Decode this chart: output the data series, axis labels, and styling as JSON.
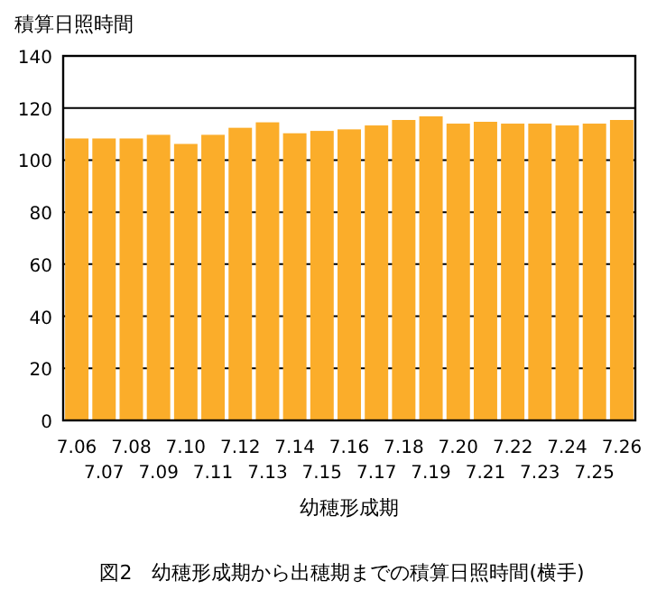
{
  "chart_data": {
    "type": "bar",
    "ylabel": "積算日照時間",
    "xlabel": "幼穂形成期",
    "annotations": [
      "図2　幼穂形成期から出穂期までの積算日照時間(横手)"
    ],
    "categories": [
      "7.06",
      "7.07",
      "7.08",
      "7.09",
      "7.10",
      "7.11",
      "7.12",
      "7.13",
      "7.14",
      "7.15",
      "7.16",
      "7.17",
      "7.18",
      "7.19",
      "7.20",
      "7.21",
      "7.22",
      "7.23",
      "7.24",
      "7.25",
      "7.26"
    ],
    "values": [
      108.3,
      108.3,
      108.3,
      109.7,
      106.2,
      109.7,
      112.4,
      114.5,
      110.3,
      111.2,
      111.8,
      113.3,
      115.4,
      116.8,
      114,
      114.7,
      114,
      114,
      113.3,
      114,
      115.4
    ],
    "color": "#fbad2a",
    "ylim": [
      0,
      140
    ],
    "yticks": [
      0,
      20,
      40,
      60,
      80,
      100,
      120,
      140
    ],
    "grid": "y"
  }
}
